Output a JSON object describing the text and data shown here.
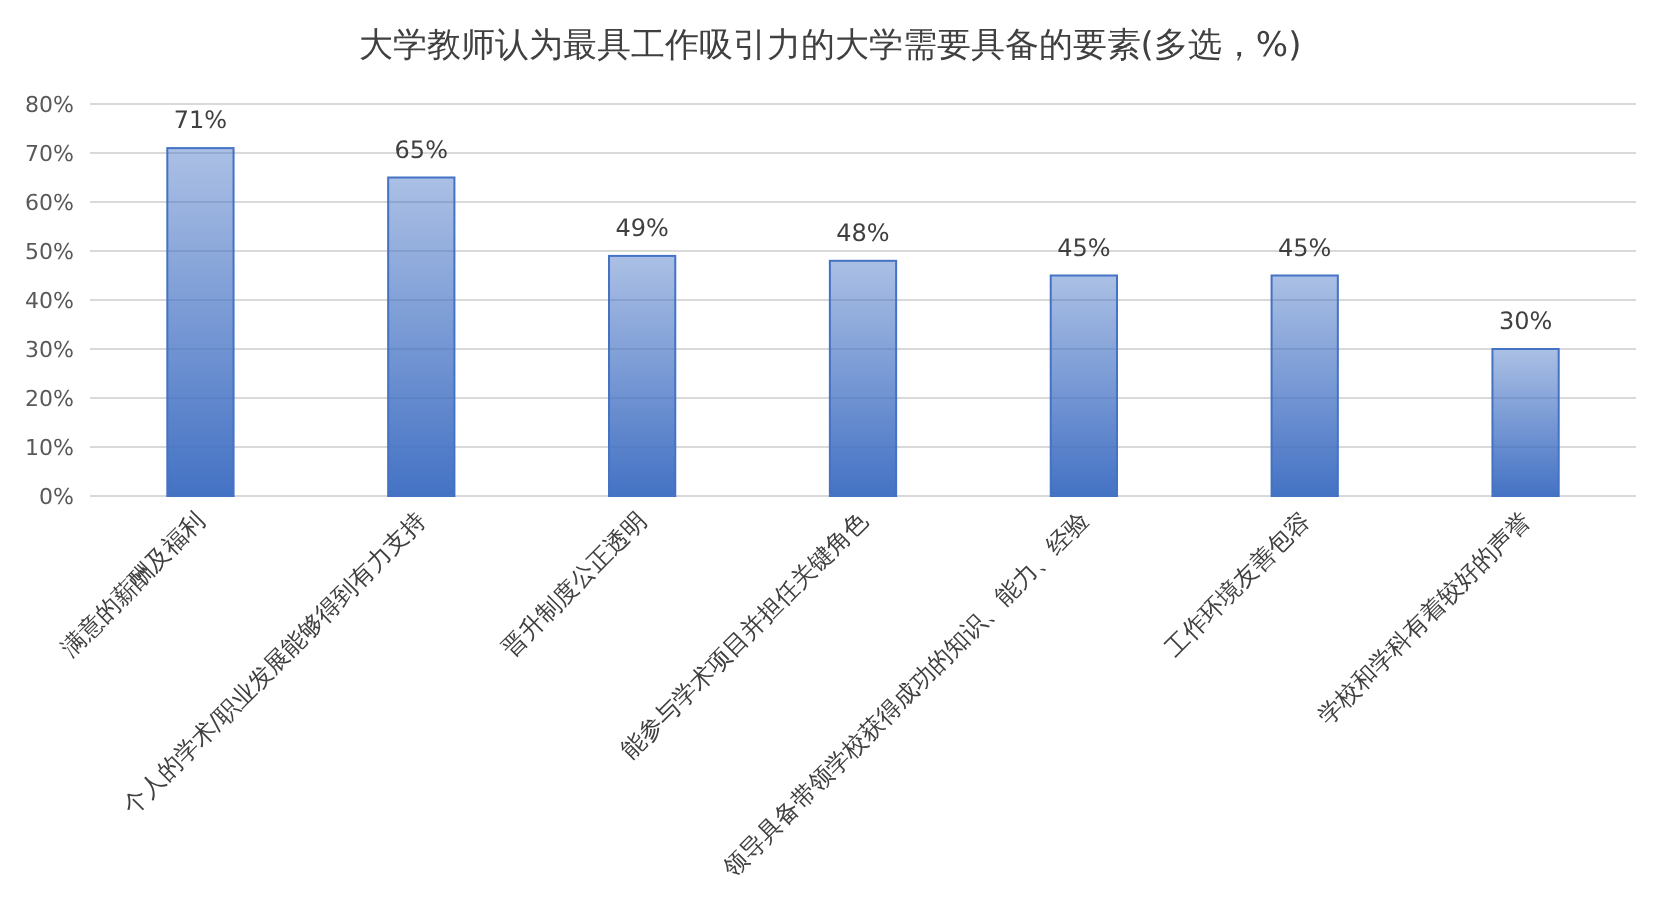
{
  "chart_data": {
    "type": "bar",
    "title": "大学教师认为最具工作吸引力的大学需要具备的要素(多选，%)",
    "categories": [
      "满意的薪酬及福利",
      "个人的学术/职业发展能够得到有力支持",
      "晋升制度公正透明",
      "能参与学术项目并担任关键角色",
      "领导具备带领学校获得成功的知识、能力、经验",
      "工作环境友善包容",
      "学校和学科有着较好的声誉"
    ],
    "values": [
      71,
      65,
      49,
      48,
      45,
      45,
      30
    ],
    "value_labels": [
      "71%",
      "65%",
      "49%",
      "48%",
      "45%",
      "45%",
      "30%"
    ],
    "color": "#4472c4",
    "ylim": [
      0,
      80
    ],
    "yticks": [
      {
        "value": 0,
        "label": "0%"
      },
      {
        "value": 10,
        "label": "10%"
      },
      {
        "value": 20,
        "label": "20%"
      },
      {
        "value": 30,
        "label": "30%"
      },
      {
        "value": 40,
        "label": "40%"
      },
      {
        "value": 50,
        "label": "50%"
      },
      {
        "value": 60,
        "label": "60%"
      },
      {
        "value": 70,
        "label": "70%"
      },
      {
        "value": 80,
        "label": "80%"
      }
    ],
    "grid": "y"
  }
}
